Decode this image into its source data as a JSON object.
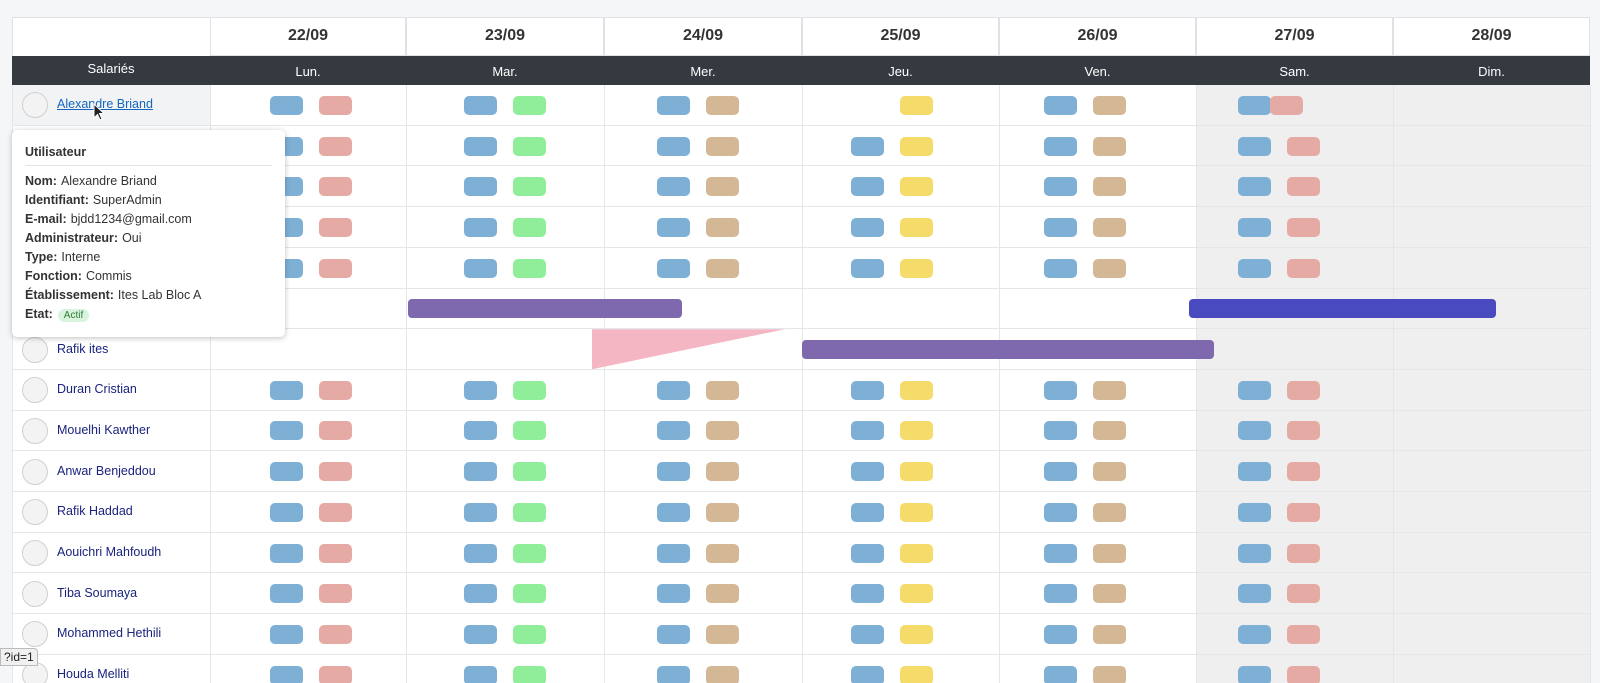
{
  "header": {
    "employees_label": "Salariés",
    "dates": [
      "22/09",
      "23/09",
      "24/09",
      "25/09",
      "26/09",
      "27/09",
      "28/09"
    ],
    "weekdays": [
      "Lun.",
      "Mar.",
      "Mer.",
      "Jeu.",
      "Ven.",
      "Sam.",
      "Dim."
    ]
  },
  "employees": [
    "Alexandre Briand",
    "Rafik ites",
    "Duran Cristian",
    "Mouelhi Kawther",
    "Anwar Benjeddou",
    "Rafik Haddad",
    "Aouichri Mahfoudh",
    "Tiba Soumaya",
    "Mohammed Hethili",
    "Houda Melliti"
  ],
  "tooltip": {
    "title": "Utilisateur",
    "fields": [
      {
        "label": "Nom:",
        "value": "Alexandre Briand"
      },
      {
        "label": "Identifiant:",
        "value": "SuperAdmin"
      },
      {
        "label": "E-mail:",
        "value": "bjdd1234@gmail.com"
      },
      {
        "label": "Administrateur:",
        "value": "Oui"
      },
      {
        "label": "Type:",
        "value": "Interne"
      },
      {
        "label": "Fonction:",
        "value": "Commis"
      },
      {
        "label": "Établissement:",
        "value": "Ites Lab Bloc A"
      },
      {
        "label": "Etat:",
        "value": "Actif"
      }
    ]
  },
  "status_bar": "?id=1"
}
